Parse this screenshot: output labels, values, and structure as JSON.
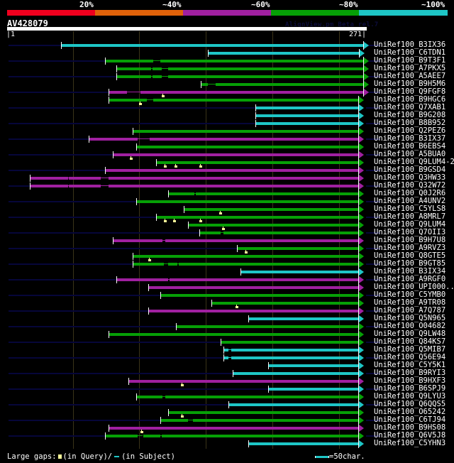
{
  "app": {
    "watermark": "AlignView.pm Beta rel.7"
  },
  "identity_scale": {
    "labels": [
      "20%",
      "~40%",
      "~60%",
      "~80%",
      "~100%"
    ],
    "colors": [
      "#f0001e",
      "#e0620a",
      "#a020a0",
      "#06a006",
      "#1ec6c6"
    ]
  },
  "query": {
    "name": "AV428079",
    "start_label": "|1",
    "end_label": "271|",
    "length": 271
  },
  "colors": {
    "cyan": "#1ec6c6",
    "green": "#06a006",
    "magenta": "#a020a0",
    "leader": "#06063a",
    "marker": "#ffff99",
    "grid": "#3a3318"
  },
  "hits": [
    {
      "name": "UniRef100_B3IX36",
      "color": "cyan",
      "start": 42,
      "end": 271,
      "gaps": [],
      "markers": [],
      "leader": true
    },
    {
      "name": "UniRef100_C6TDN1",
      "color": "cyan",
      "start": 153,
      "end": 268,
      "gaps": [],
      "markers": [],
      "leader": false
    },
    {
      "name": "UniRef100_B9T3F1",
      "color": "green",
      "start": 75,
      "end": 271,
      "gaps": [
        [
          112,
          117
        ]
      ],
      "markers": [],
      "leader": true
    },
    {
      "name": "UniRef100_A7PKX5",
      "color": "green",
      "start": 84,
      "end": 271,
      "gaps": [
        [
          110,
          111
        ],
        [
          118,
          123
        ]
      ],
      "markers": [],
      "leader": false
    },
    {
      "name": "UniRef100_A5AEE7",
      "color": "green",
      "start": 84,
      "end": 271,
      "gaps": [
        [
          110,
          111
        ],
        [
          118,
          123
        ]
      ],
      "markers": [],
      "leader": true
    },
    {
      "name": "UniRef100_B9H5M6",
      "color": "green",
      "start": 148,
      "end": 271,
      "gaps": [
        [
          153,
          159
        ]
      ],
      "markers": [],
      "leader": false
    },
    {
      "name": "UniRef100_Q9FGF8",
      "color": "magenta",
      "start": 78,
      "end": 271,
      "gaps": [
        [
          92,
          102
        ]
      ],
      "markers": [
        118
      ],
      "leader": true
    },
    {
      "name": "UniRef100_B9HGC6",
      "color": "green",
      "start": 78,
      "end": 267,
      "gaps": [
        [
          107,
          112
        ]
      ],
      "markers": [
        101
      ],
      "leader": false
    },
    {
      "name": "UniRef100_Q7XAB1",
      "color": "cyan",
      "start": 189,
      "end": 267,
      "gaps": [],
      "markers": [],
      "leader": true
    },
    {
      "name": "UniRef100_B9G208",
      "color": "cyan",
      "start": 189,
      "end": 267,
      "gaps": [],
      "markers": [],
      "leader": false
    },
    {
      "name": "UniRef100_B8B952",
      "color": "cyan",
      "start": 189,
      "end": 267,
      "gaps": [],
      "markers": [],
      "leader": true
    },
    {
      "name": "UniRef100_Q2PEZ6",
      "color": "green",
      "start": 96,
      "end": 267,
      "gaps": [],
      "markers": [],
      "leader": false
    },
    {
      "name": "UniRef100_B3IX37",
      "color": "magenta",
      "start": 63,
      "end": 267,
      "gaps": [
        [
          100,
          109
        ]
      ],
      "markers": [],
      "leader": true
    },
    {
      "name": "UniRef100_B6EBS4",
      "color": "green",
      "start": 99,
      "end": 267,
      "gaps": [],
      "markers": [],
      "leader": false
    },
    {
      "name": "UniRef100_A5BUA0",
      "color": "magenta",
      "start": 81,
      "end": 267,
      "gaps": [],
      "markers": [
        94
      ],
      "leader": true
    },
    {
      "name": "UniRef100_Q9LUM4-2",
      "color": "green",
      "start": 114,
      "end": 267,
      "gaps": [],
      "markers": [
        120,
        128,
        147
      ],
      "leader": false
    },
    {
      "name": "UniRef100_B9GSD4",
      "color": "magenta",
      "start": 75,
      "end": 267,
      "gaps": [],
      "markers": [],
      "leader": true
    },
    {
      "name": "UniRef100_Q3HW33",
      "color": "magenta",
      "start": 18,
      "end": 267,
      "gaps": [
        [
          47,
          48
        ],
        [
          72,
          78
        ]
      ],
      "markers": [],
      "leader": false
    },
    {
      "name": "UniRef100_Q32W72",
      "color": "magenta",
      "start": 18,
      "end": 267,
      "gaps": [
        [
          47,
          48
        ],
        [
          72,
          78
        ]
      ],
      "markers": [],
      "leader": true
    },
    {
      "name": "UniRef100_Q0J2R6",
      "color": "green",
      "start": 123,
      "end": 267,
      "gaps": [
        [
          143,
          144
        ]
      ],
      "markers": [],
      "leader": false
    },
    {
      "name": "UniRef100_A4UNV2",
      "color": "green",
      "start": 99,
      "end": 267,
      "gaps": [],
      "markers": [],
      "leader": true
    },
    {
      "name": "UniRef100_C5YLS8",
      "color": "green",
      "start": 135,
      "end": 267,
      "gaps": [],
      "markers": [
        162
      ],
      "leader": false
    },
    {
      "name": "UniRef100_A8MRL7",
      "color": "green",
      "start": 114,
      "end": 267,
      "gaps": [],
      "markers": [
        120,
        127,
        147
      ],
      "leader": true
    },
    {
      "name": "UniRef100_Q9LUM4",
      "color": "green",
      "start": 138,
      "end": 267,
      "gaps": [],
      "markers": [
        164
      ],
      "leader": false
    },
    {
      "name": "UniRef100_Q7OII3",
      "color": "green",
      "start": 147,
      "end": 267,
      "gaps": [
        [
          163,
          165
        ]
      ],
      "markers": [],
      "leader": true
    },
    {
      "name": "UniRef100_B9H7U8",
      "color": "magenta",
      "start": 81,
      "end": 267,
      "gaps": [
        [
          119,
          121
        ]
      ],
      "markers": [],
      "leader": false
    },
    {
      "name": "UniRef100_A9RVZ3",
      "color": "green",
      "start": 175,
      "end": 267,
      "gaps": [],
      "markers": [
        181
      ],
      "leader": true
    },
    {
      "name": "UniRef100_Q8GTE5",
      "color": "green",
      "start": 96,
      "end": 267,
      "gaps": [],
      "markers": [
        108
      ],
      "leader": false
    },
    {
      "name": "UniRef100_B9GT85",
      "color": "green",
      "start": 96,
      "end": 267,
      "gaps": [
        [
          120,
          123
        ],
        [
          130,
          131
        ]
      ],
      "markers": [],
      "leader": true
    },
    {
      "name": "UniRef100_B3IX34",
      "color": "cyan",
      "start": 178,
      "end": 267,
      "gaps": [],
      "markers": [],
      "leader": false
    },
    {
      "name": "UniRef100_A9RGF0",
      "color": "magenta",
      "start": 84,
      "end": 267,
      "gaps": [
        [
          123,
          124
        ]
      ],
      "markers": [],
      "leader": true
    },
    {
      "name": "UniRef100_UPI000..",
      "color": "magenta",
      "start": 108,
      "end": 267,
      "gaps": [],
      "markers": [],
      "leader": false
    },
    {
      "name": "UniRef100_C5YMB0",
      "color": "green",
      "start": 117,
      "end": 267,
      "gaps": [],
      "markers": [],
      "leader": true
    },
    {
      "name": "UniRef100_A9TR08",
      "color": "green",
      "start": 156,
      "end": 267,
      "gaps": [],
      "markers": [
        174
      ],
      "leader": false
    },
    {
      "name": "UniRef100_A7Q787",
      "color": "magenta",
      "start": 108,
      "end": 267,
      "gaps": [],
      "markers": [],
      "leader": true
    },
    {
      "name": "UniRef100_Q5N965",
      "color": "cyan",
      "start": 184,
      "end": 267,
      "gaps": [],
      "markers": [],
      "leader": false
    },
    {
      "name": "UniRef100_O04682",
      "color": "green",
      "start": 129,
      "end": 267,
      "gaps": [],
      "markers": [],
      "leader": true
    },
    {
      "name": "UniRef100_Q9LW48",
      "color": "green",
      "start": 78,
      "end": 267,
      "gaps": [],
      "markers": [],
      "leader": false
    },
    {
      "name": "UniRef100_Q84KS7",
      "color": "green",
      "start": 163,
      "end": 267,
      "gaps": [],
      "markers": [],
      "leader": true
    },
    {
      "name": "UniRef100_Q5MIB7",
      "color": "cyan",
      "start": 165,
      "end": 267,
      "gaps": [
        [
          169,
          171
        ]
      ],
      "markers": [],
      "leader": false
    },
    {
      "name": "UniRef100_Q56E94",
      "color": "cyan",
      "start": 165,
      "end": 267,
      "gaps": [
        [
          169,
          171
        ]
      ],
      "markers": [],
      "leader": true
    },
    {
      "name": "UniRef100_C5Y5K1",
      "color": "cyan",
      "start": 199,
      "end": 267,
      "gaps": [],
      "markers": [],
      "leader": false
    },
    {
      "name": "UniRef100_B9RYI3",
      "color": "cyan",
      "start": 172,
      "end": 267,
      "gaps": [],
      "markers": [],
      "leader": true
    },
    {
      "name": "UniRef100_B9HXF3",
      "color": "magenta",
      "start": 93,
      "end": 267,
      "gaps": [],
      "markers": [
        133
      ],
      "leader": false
    },
    {
      "name": "UniRef100_B6SPJ9",
      "color": "cyan",
      "start": 199,
      "end": 267,
      "gaps": [],
      "markers": [],
      "leader": true
    },
    {
      "name": "UniRef100_Q9LYU3",
      "color": "green",
      "start": 99,
      "end": 267,
      "gaps": [
        [
          119,
          121
        ]
      ],
      "markers": [],
      "leader": false
    },
    {
      "name": "UniRef100_Q6QQS5",
      "color": "cyan",
      "start": 169,
      "end": 267,
      "gaps": [],
      "markers": [],
      "leader": true
    },
    {
      "name": "UniRef100_O65242",
      "color": "green",
      "start": 123,
      "end": 267,
      "gaps": [],
      "markers": [
        133
      ],
      "leader": false
    },
    {
      "name": "UniRef100_C6TJ94",
      "color": "green",
      "start": 117,
      "end": 267,
      "gaps": [
        [
          138,
          142
        ]
      ],
      "markers": [],
      "leader": true
    },
    {
      "name": "UniRef100_B9HS08",
      "color": "magenta",
      "start": 78,
      "end": 267,
      "gaps": [],
      "markers": [
        102
      ],
      "leader": false
    },
    {
      "name": "UniRef100_Q6V5J8",
      "color": "green",
      "start": 75,
      "end": 267,
      "gaps": [
        [
          100,
          104
        ],
        [
          117,
          118
        ]
      ],
      "markers": [],
      "leader": true
    },
    {
      "name": "UniRef100_C5YHN3",
      "color": "cyan",
      "start": 184,
      "end": 267,
      "gaps": [],
      "markers": [],
      "leader": false
    }
  ],
  "footer": {
    "large_gaps_label": "Large gaps:",
    "in_query": "(in Query)/",
    "in_subject": "(in Subject)",
    "scale_key": "=50char."
  }
}
